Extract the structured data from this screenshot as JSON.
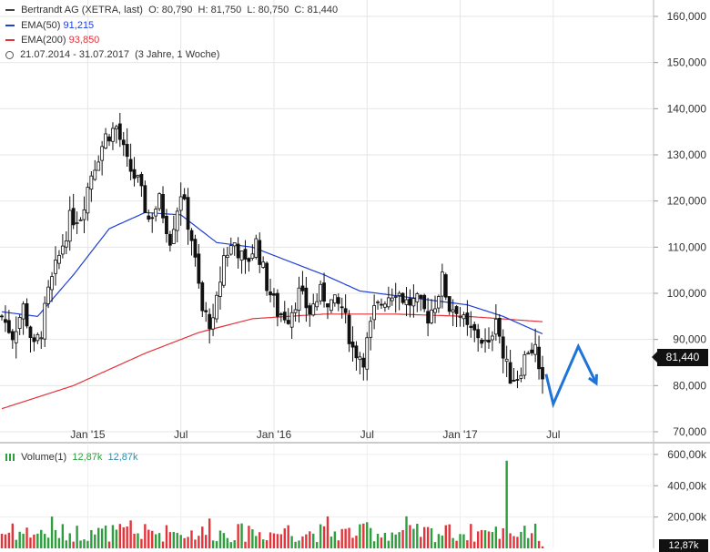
{
  "legend": {
    "instrument": "Bertrandt AG (XETRA, last)",
    "open_label": "O:",
    "open": "80,790",
    "high_label": "H:",
    "high": "81,750",
    "low_label": "L:",
    "low": "80,750",
    "close_label": "C:",
    "close": "81,440",
    "ema50_label": "EMA(50)",
    "ema50_value": "91,215",
    "ema200_label": "EMA(200)",
    "ema200_value": "93,850",
    "range": "21.07.2014 - 31.07.2017",
    "period": "(3 Jahre, 1 Woche)"
  },
  "volume_legend": {
    "label": "Volume(1)",
    "value1": "12,87k",
    "value2": "12,87k"
  },
  "last_price_badge": "81,440",
  "volume_badge": "12,87k",
  "colors": {
    "up": "#2e9e3e",
    "down": "#e2343a",
    "ema50": "#1f3fd6",
    "ema200": "#e2343a",
    "candle": "#111111",
    "arrow": "#1f74d6"
  },
  "chart_data": {
    "type": "candlestick",
    "price_axis": {
      "ylim": [
        70000,
        160000
      ],
      "ticks": [
        {
          "value": 70000,
          "label": "70,000"
        },
        {
          "value": 80000,
          "label": "80,000"
        },
        {
          "value": 90000,
          "label": "90,000"
        },
        {
          "value": 100000,
          "label": "100,000"
        },
        {
          "value": 110000,
          "label": "110,000"
        },
        {
          "value": 120000,
          "label": "120,000"
        },
        {
          "value": 130000,
          "label": "130,000"
        },
        {
          "value": 140000,
          "label": "140,000"
        },
        {
          "value": 150000,
          "label": "150,000"
        },
        {
          "value": 160000,
          "label": "160,000"
        }
      ]
    },
    "x_axis": {
      "range": [
        "2014-07-21",
        "2017-07-31"
      ],
      "labels": [
        {
          "week": 24,
          "label": "Jan '15"
        },
        {
          "week": 50,
          "label": "Jul"
        },
        {
          "week": 76,
          "label": "Jan '16"
        },
        {
          "week": 102,
          "label": "Jul"
        },
        {
          "week": 128,
          "label": "Jan '17"
        },
        {
          "week": 154,
          "label": "Jul"
        }
      ]
    },
    "weekly_close_anchors": [
      {
        "week": 0,
        "close": 95000
      },
      {
        "week": 3,
        "close": 91000
      },
      {
        "week": 6,
        "close": 97000
      },
      {
        "week": 9,
        "close": 88000
      },
      {
        "week": 11,
        "close": 92000
      },
      {
        "week": 13,
        "close": 100000
      },
      {
        "week": 16,
        "close": 108000
      },
      {
        "week": 19,
        "close": 116000
      },
      {
        "week": 22,
        "close": 117000
      },
      {
        "week": 25,
        "close": 126000
      },
      {
        "week": 29,
        "close": 134000
      },
      {
        "week": 32,
        "close": 136000
      },
      {
        "week": 35,
        "close": 128000
      },
      {
        "week": 38,
        "close": 124000
      },
      {
        "week": 41,
        "close": 116000
      },
      {
        "week": 44,
        "close": 120000
      },
      {
        "week": 47,
        "close": 112000
      },
      {
        "week": 50,
        "close": 122000
      },
      {
        "week": 53,
        "close": 112000
      },
      {
        "week": 56,
        "close": 96000
      },
      {
        "week": 59,
        "close": 93000
      },
      {
        "week": 62,
        "close": 108000
      },
      {
        "week": 65,
        "close": 111000
      },
      {
        "week": 68,
        "close": 106000
      },
      {
        "week": 71,
        "close": 111000
      },
      {
        "week": 74,
        "close": 102000
      },
      {
        "week": 77,
        "close": 96000
      },
      {
        "week": 80,
        "close": 95000
      },
      {
        "week": 83,
        "close": 100000
      },
      {
        "week": 86,
        "close": 96000
      },
      {
        "week": 89,
        "close": 100000
      },
      {
        "week": 92,
        "close": 98000
      },
      {
        "week": 95,
        "close": 97000
      },
      {
        "week": 98,
        "close": 88000
      },
      {
        "week": 101,
        "close": 86000
      },
      {
        "week": 104,
        "close": 96000
      },
      {
        "week": 107,
        "close": 99000
      },
      {
        "week": 110,
        "close": 101000
      },
      {
        "week": 113,
        "close": 98000
      },
      {
        "week": 116,
        "close": 98000
      },
      {
        "week": 119,
        "close": 95000
      },
      {
        "week": 121,
        "close": 98000
      },
      {
        "week": 123,
        "close": 103000
      },
      {
        "week": 125,
        "close": 97000
      },
      {
        "week": 127,
        "close": 97000
      },
      {
        "week": 130,
        "close": 92000
      },
      {
        "week": 133,
        "close": 91000
      },
      {
        "week": 136,
        "close": 88000
      },
      {
        "week": 138,
        "close": 96000
      },
      {
        "week": 140,
        "close": 86000
      },
      {
        "week": 142,
        "close": 82000
      },
      {
        "week": 144,
        "close": 82000
      },
      {
        "week": 147,
        "close": 88000
      },
      {
        "week": 149,
        "close": 88000
      },
      {
        "week": 150,
        "close": 82000
      },
      {
        "week": 151,
        "close": 81440
      }
    ],
    "ema50_anchors": [
      {
        "week": 0,
        "value": 96000
      },
      {
        "week": 10,
        "value": 95000
      },
      {
        "week": 20,
        "value": 104000
      },
      {
        "week": 30,
        "value": 114000
      },
      {
        "week": 40,
        "value": 117500
      },
      {
        "week": 50,
        "value": 117000
      },
      {
        "week": 60,
        "value": 111000
      },
      {
        "week": 70,
        "value": 110000
      },
      {
        "week": 80,
        "value": 107000
      },
      {
        "week": 90,
        "value": 104000
      },
      {
        "week": 100,
        "value": 100500
      },
      {
        "week": 110,
        "value": 99500
      },
      {
        "week": 120,
        "value": 98500
      },
      {
        "week": 130,
        "value": 97500
      },
      {
        "week": 140,
        "value": 95000
      },
      {
        "week": 151,
        "value": 91215
      }
    ],
    "ema200_anchors": [
      {
        "week": 0,
        "value": 75000
      },
      {
        "week": 20,
        "value": 80000
      },
      {
        "week": 40,
        "value": 87000
      },
      {
        "week": 55,
        "value": 91500
      },
      {
        "week": 70,
        "value": 94500
      },
      {
        "week": 90,
        "value": 95500
      },
      {
        "week": 110,
        "value": 95500
      },
      {
        "week": 130,
        "value": 95000
      },
      {
        "week": 151,
        "value": 93850
      }
    ],
    "forecast_arrow": [
      {
        "week": 152,
        "value": 82500
      },
      {
        "week": 154,
        "value": 76000
      },
      {
        "week": 161,
        "value": 88500
      },
      {
        "week": 166,
        "value": 80500
      }
    ],
    "volume_axis": {
      "ylim": [
        0,
        640000
      ],
      "ticks": [
        {
          "value": 200000,
          "label": "200,00k"
        },
        {
          "value": 400000,
          "label": "400,00k"
        },
        {
          "value": 600000,
          "label": "600,00k"
        }
      ]
    },
    "volume_spike": {
      "week": 141,
      "value": 560000
    }
  }
}
